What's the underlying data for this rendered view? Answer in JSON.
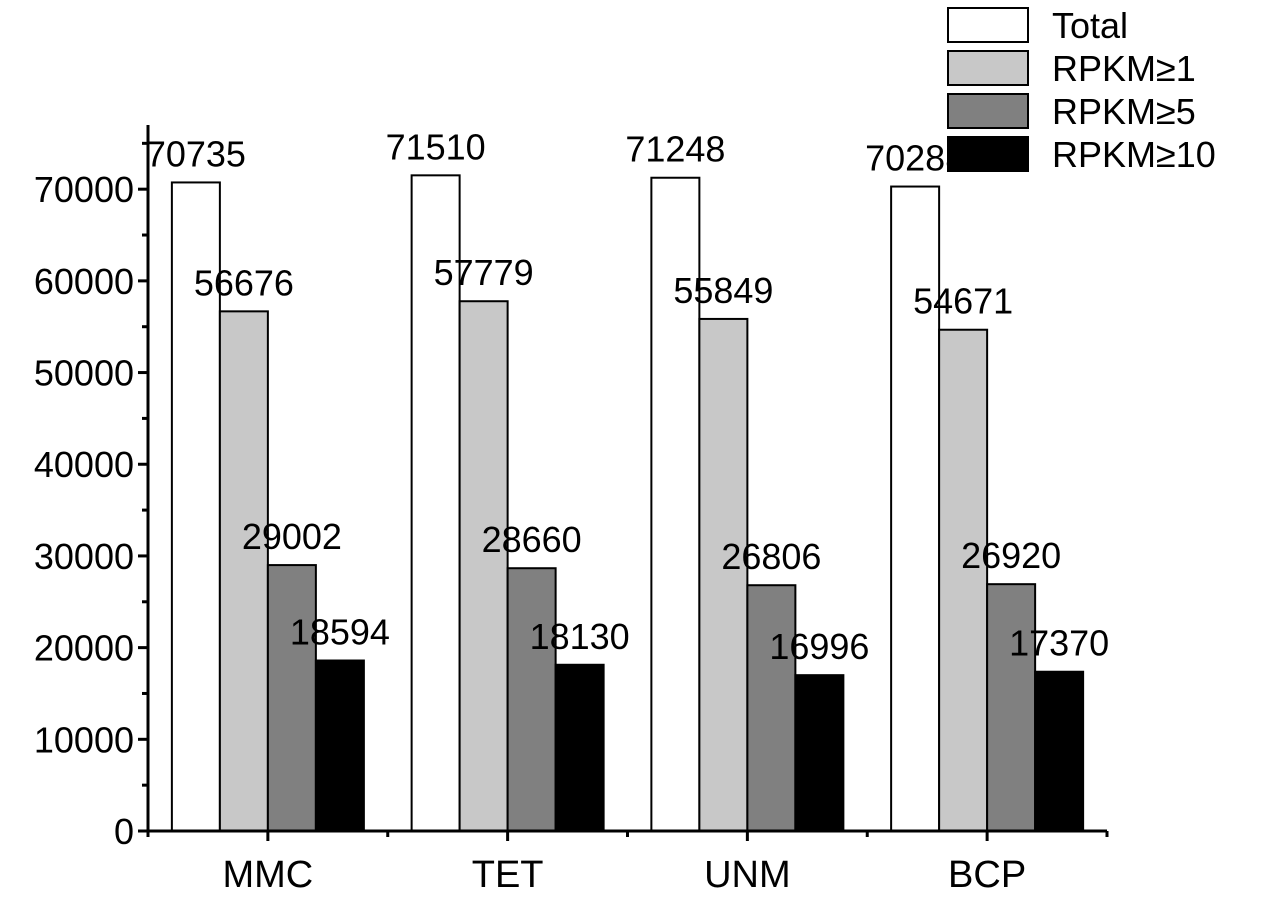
{
  "chart_data": {
    "type": "bar",
    "title": "",
    "xlabel": "",
    "ylabel": "",
    "categories": [
      "MMC",
      "TET",
      "UNM",
      "BCP"
    ],
    "series": [
      {
        "name": "Total",
        "color": "#ffffff",
        "values": [
          70735,
          71510,
          71248,
          70288
        ],
        "labels": [
          "70735",
          "71510",
          "71248",
          "70288"
        ]
      },
      {
        "name": "RPKM≥1",
        "color": "#c8c8c8",
        "values": [
          56676,
          57779,
          55849,
          54671
        ],
        "labels": [
          "56676",
          "57779",
          "55849",
          "54671"
        ]
      },
      {
        "name": "RPKM≥5",
        "color": "#808080",
        "values": [
          29002,
          28660,
          26806,
          26920
        ],
        "labels": [
          "29002",
          "28660",
          "26806",
          "26920"
        ]
      },
      {
        "name": "RPKM≥10",
        "color": "#000000",
        "values": [
          18594,
          18130,
          16996,
          17370
        ],
        "labels": [
          "18594",
          "18130",
          "16996",
          "17370"
        ]
      }
    ],
    "ylim": [
      0,
      77000
    ],
    "yticks": [
      0,
      10000,
      20000,
      30000,
      40000,
      50000,
      60000,
      70000
    ],
    "ytick_labels": [
      "0",
      "10000",
      "20000",
      "30000",
      "40000",
      "50000",
      "60000",
      "70000"
    ],
    "grid": false,
    "legend_position": "top-right"
  }
}
